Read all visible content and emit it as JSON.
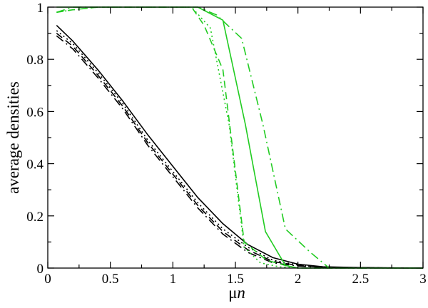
{
  "chart_data": {
    "type": "line",
    "title": "",
    "xlabel_parts": [
      "μ",
      "n"
    ],
    "ylabel": "average densities",
    "xlim": [
      0,
      3
    ],
    "ylim": [
      0,
      1
    ],
    "xticks": [
      "0",
      "0.5",
      "1",
      "1.5",
      "2",
      "2.5",
      "3"
    ],
    "yticks": [
      "0",
      "0.2",
      "0.4",
      "0.6",
      "0.8",
      "1"
    ],
    "grid": false,
    "legend": "none",
    "series": [
      {
        "color": "#000000",
        "dash": "solid",
        "x": [
          0.07,
          0.2,
          0.4,
          0.6,
          0.8,
          1.0,
          1.2,
          1.4,
          1.6,
          1.8,
          2.0,
          2.2,
          2.5,
          3.0
        ],
        "y": [
          0.93,
          0.87,
          0.76,
          0.64,
          0.51,
          0.39,
          0.27,
          0.17,
          0.09,
          0.04,
          0.015,
          0.005,
          0.002,
          0.0
        ]
      },
      {
        "color": "#000000",
        "dash": "dotted",
        "x": [
          0.07,
          0.2,
          0.4,
          0.6,
          0.8,
          1.0,
          1.2,
          1.4,
          1.6,
          1.8,
          2.0,
          2.2,
          2.5,
          3.0
        ],
        "y": [
          0.91,
          0.86,
          0.75,
          0.63,
          0.49,
          0.37,
          0.25,
          0.15,
          0.08,
          0.03,
          0.012,
          0.004,
          0.001,
          0.0
        ]
      },
      {
        "color": "#000000",
        "dash": "dashed",
        "x": [
          0.07,
          0.2,
          0.4,
          0.6,
          0.8,
          1.0,
          1.2,
          1.4,
          1.6,
          1.8,
          2.0,
          2.2,
          2.5,
          3.0
        ],
        "y": [
          0.9,
          0.85,
          0.74,
          0.62,
          0.48,
          0.36,
          0.24,
          0.14,
          0.07,
          0.025,
          0.01,
          0.003,
          0.001,
          0.0
        ]
      },
      {
        "color": "#000000",
        "dash": "dashdot",
        "x": [
          0.07,
          0.2,
          0.4,
          0.6,
          0.8,
          1.0,
          1.2,
          1.4,
          1.6,
          1.8,
          2.0,
          2.2,
          2.5,
          3.0
        ],
        "y": [
          0.89,
          0.84,
          0.73,
          0.61,
          0.47,
          0.35,
          0.23,
          0.13,
          0.06,
          0.02,
          0.008,
          0.002,
          0.001,
          0.0
        ]
      },
      {
        "color": "#22cc22",
        "dash": "solid",
        "x": [
          0.07,
          0.2,
          0.4,
          0.6,
          0.8,
          1.0,
          1.2,
          1.4,
          1.58,
          1.74,
          1.9,
          2.0,
          2.5,
          3.0
        ],
        "y": [
          1.0,
          1.0,
          1.0,
          1.0,
          1.0,
          1.0,
          1.0,
          0.95,
          0.55,
          0.14,
          0.01,
          0.0,
          0.0,
          0.0
        ]
      },
      {
        "color": "#22cc22",
        "dash": "dotted",
        "x": [
          0.07,
          0.2,
          0.4,
          0.6,
          0.8,
          1.0,
          1.15,
          1.3,
          1.45,
          1.57,
          1.7,
          1.85,
          2.0,
          2.5,
          3.0
        ],
        "y": [
          0.98,
          0.99,
          1.0,
          1.0,
          1.0,
          1.0,
          1.0,
          0.92,
          0.55,
          0.08,
          0.02,
          0.005,
          0.0,
          0.0,
          0.0
        ]
      },
      {
        "color": "#22cc22",
        "dash": "dashed",
        "x": [
          0.07,
          0.2,
          0.4,
          0.6,
          0.8,
          1.0,
          1.15,
          1.25,
          1.4,
          1.57,
          1.75,
          1.9,
          2.0,
          2.5,
          3.0
        ],
        "y": [
          0.98,
          0.99,
          1.0,
          1.0,
          1.0,
          1.0,
          1.0,
          0.93,
          0.76,
          0.1,
          0.03,
          0.01,
          0.0,
          0.0,
          0.0
        ]
      },
      {
        "color": "#22cc22",
        "dash": "dashdot",
        "x": [
          0.07,
          0.2,
          0.4,
          0.6,
          0.8,
          1.0,
          1.2,
          1.35,
          1.55,
          1.72,
          1.9,
          2.1,
          2.25,
          2.5,
          3.0
        ],
        "y": [
          0.98,
          1.0,
          1.0,
          1.0,
          1.0,
          1.0,
          1.0,
          0.97,
          0.88,
          0.55,
          0.15,
          0.06,
          0.0,
          0.0,
          0.0
        ]
      }
    ]
  }
}
